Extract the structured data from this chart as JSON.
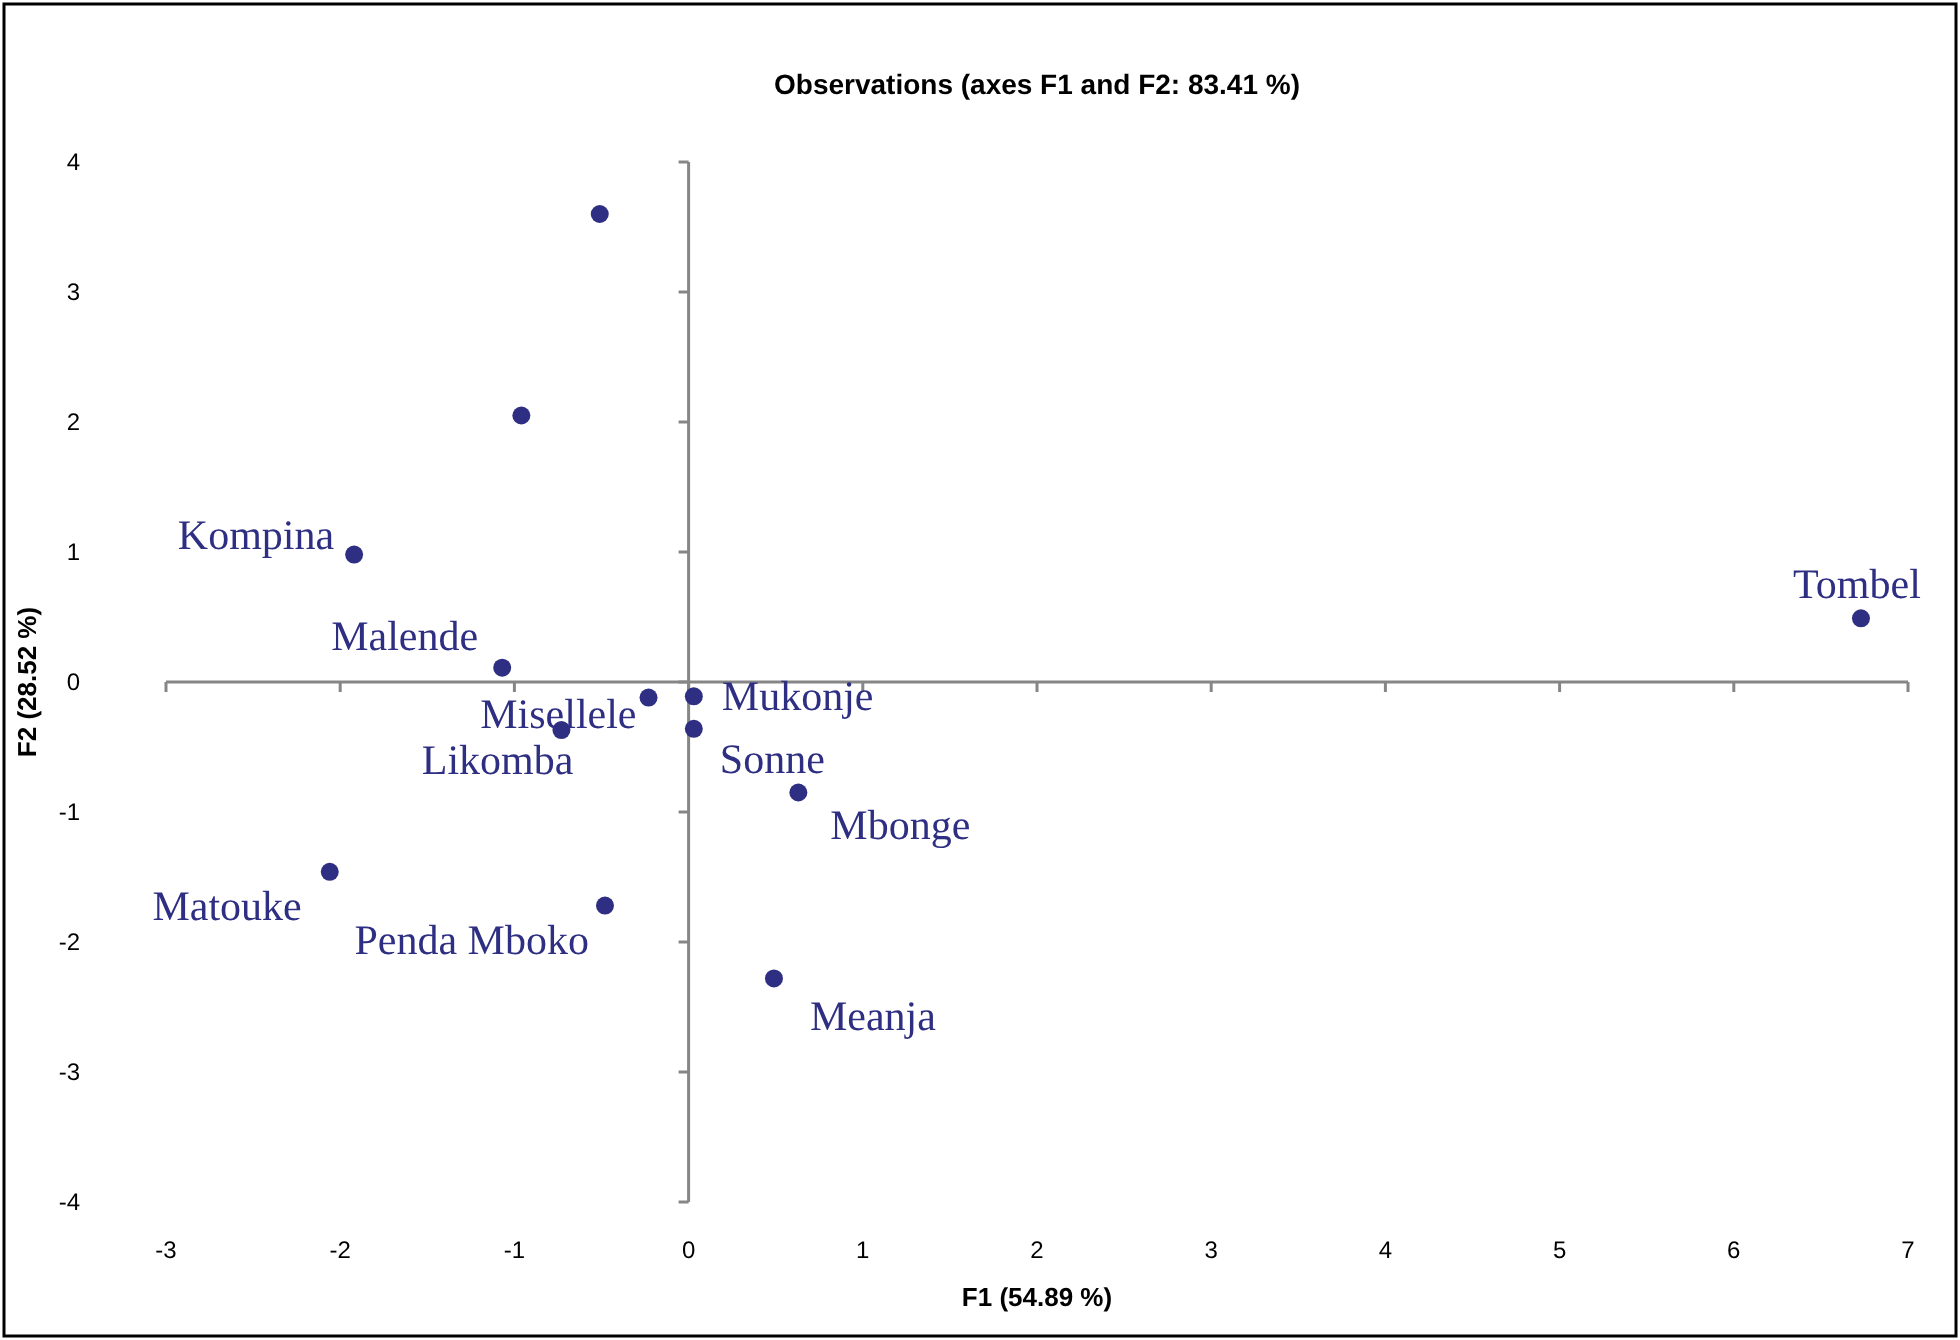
{
  "chart_data": {
    "type": "scatter",
    "title": "Observations (axes F1 and F2: 83.41 %)",
    "xlabel": "F1 (54.89 %)",
    "ylabel": "F2 (28.52 %)",
    "xlim": [
      -3,
      7
    ],
    "xticks": [
      -3,
      -2,
      -1,
      0,
      1,
      2,
      3,
      4,
      5,
      6,
      7
    ],
    "ylim": [
      -4,
      4
    ],
    "yticks": [
      -4,
      -3,
      -2,
      -1,
      0,
      1,
      2,
      3,
      4
    ],
    "marker": "circle",
    "series": [
      {
        "color": "#2e2e82",
        "x": [
          -0.51,
          -0.96,
          -1.92,
          -1.07,
          -0.23,
          -0.73,
          0.03,
          0.03,
          0.63,
          0.49,
          -2.06,
          -0.48,
          6.73
        ],
        "values": [
          3.6,
          2.05,
          0.98,
          0.11,
          -0.12,
          -0.37,
          -0.11,
          -0.36,
          -0.85,
          -2.28,
          -1.46,
          -1.72,
          0.49
        ]
      }
    ],
    "annotations": [
      {
        "text": "Kompina",
        "x": -1.92,
        "y": 0.98
      },
      {
        "text": "Malende",
        "x": -1.07,
        "y": 0.11
      },
      {
        "text": "Misellele",
        "x": -0.23,
        "y": -0.12
      },
      {
        "text": "Likomba",
        "x": -0.73,
        "y": -0.37
      },
      {
        "text": "Mukonje",
        "x": 0.03,
        "y": -0.11
      },
      {
        "text": "Sonne",
        "x": 0.03,
        "y": -0.36
      },
      {
        "text": "Mbonge",
        "x": 0.63,
        "y": -0.85
      },
      {
        "text": "Meanja",
        "x": 0.49,
        "y": -2.28
      },
      {
        "text": "Matouke",
        "x": -2.06,
        "y": -1.46
      },
      {
        "text": "Penda Mboko",
        "x": -0.48,
        "y": -1.72
      },
      {
        "text": "Tombel",
        "x": 6.73,
        "y": 0.49
      }
    ]
  }
}
